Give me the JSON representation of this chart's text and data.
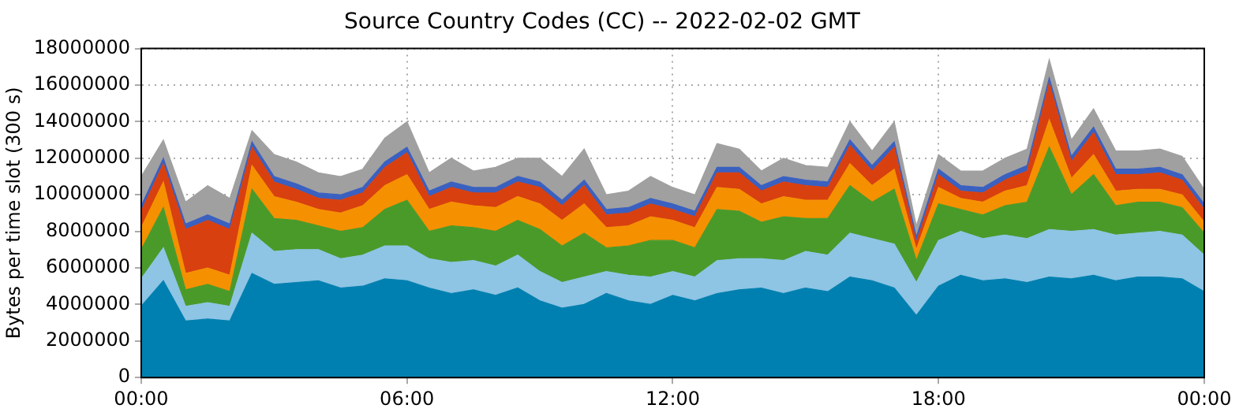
{
  "chart_data": {
    "type": "area",
    "stacked": true,
    "title": "Source Country Codes (CC) -- 2022-02-02 GMT",
    "ylabel": "Bytes per time slot (300 s)",
    "x": [
      0,
      0.5,
      1,
      1.5,
      2,
      2.5,
      3,
      3.5,
      4,
      4.5,
      5,
      5.5,
      6,
      6.5,
      7,
      7.5,
      8,
      8.5,
      9,
      9.5,
      10,
      10.5,
      11,
      11.5,
      12,
      12.5,
      13,
      13.5,
      14,
      14.5,
      15,
      15.5,
      16,
      16.5,
      17,
      17.5,
      18,
      18.5,
      19,
      19.5,
      20,
      20.5,
      21,
      21.5,
      22,
      22.5,
      23,
      23.5,
      24
    ],
    "xlim": [
      0,
      24
    ],
    "xticks": [
      {
        "value": 0,
        "label": "00:00"
      },
      {
        "value": 6,
        "label": "06:00"
      },
      {
        "value": 12,
        "label": "12:00"
      },
      {
        "value": 18,
        "label": "18:00"
      },
      {
        "value": 24,
        "label": "00:00"
      }
    ],
    "ylim": [
      0,
      18000000
    ],
    "yticks": [
      0,
      2000000,
      4000000,
      6000000,
      8000000,
      10000000,
      12000000,
      14000000,
      16000000,
      18000000
    ],
    "grid": true,
    "legend": false,
    "series": [
      {
        "color": "#0080b0",
        "values": [
          3900000.0,
          5300000.0,
          3100000.0,
          3200000.0,
          3100000.0,
          5700000.0,
          5100000.0,
          5200000.0,
          5300000.0,
          4900000.0,
          5000000.0,
          5400000.0,
          5300000.0,
          4900000.0,
          4600000.0,
          4800000.0,
          4500000.0,
          4900000.0,
          4200000.0,
          3800000.0,
          4000000.0,
          4600000.0,
          4200000.0,
          4000000.0,
          4500000.0,
          4200000.0,
          4600000.0,
          4800000.0,
          4900000.0,
          4600000.0,
          4900000.0,
          4700000.0,
          5500000.0,
          5300000.0,
          4900000.0,
          3400000.0,
          5000000.0,
          5600000.0,
          5300000.0,
          5400000.0,
          5200000.0,
          5500000.0,
          5400000.0,
          5600000.0,
          5300000.0,
          5500000.0,
          5500000.0,
          5400000.0,
          4700000.0
        ]
      },
      {
        "color": "#8ec4e4",
        "values": [
          1500000.0,
          1800000.0,
          800000.0,
          900000.0,
          800000.0,
          2200000.0,
          1800000.0,
          1800000.0,
          1700000.0,
          1600000.0,
          1700000.0,
          1800000.0,
          1900000.0,
          1600000.0,
          1700000.0,
          1600000.0,
          1600000.0,
          1800000.0,
          1600000.0,
          1400000.0,
          1500000.0,
          1200000.0,
          1400000.0,
          1500000.0,
          1300000.0,
          1300000.0,
          1800000.0,
          1700000.0,
          1600000.0,
          1800000.0,
          2000000.0,
          2000000.0,
          2400000.0,
          2300000.0,
          2400000.0,
          1800000.0,
          2500000.0,
          2400000.0,
          2300000.0,
          2400000.0,
          2400000.0,
          2600000.0,
          2600000.0,
          2500000.0,
          2500000.0,
          2400000.0,
          2500000.0,
          2400000.0,
          2000000.0
        ]
      },
      {
        "color": "#4a9a2a",
        "values": [
          1600000.0,
          2200000.0,
          900000.0,
          1000000.0,
          800000.0,
          2400000.0,
          1800000.0,
          1600000.0,
          1300000.0,
          1500000.0,
          1500000.0,
          2000000.0,
          2500000.0,
          1500000.0,
          2000000.0,
          1800000.0,
          1900000.0,
          1900000.0,
          2300000.0,
          2000000.0,
          2400000.0,
          1300000.0,
          1600000.0,
          2000000.0,
          1700000.0,
          1600000.0,
          2800000.0,
          2600000.0,
          2000000.0,
          2400000.0,
          1800000.0,
          2000000.0,
          2600000.0,
          2000000.0,
          3000000.0,
          1200000.0,
          2000000.0,
          1200000.0,
          1300000.0,
          1600000.0,
          2000000.0,
          4500000.0,
          2000000.0,
          3000000.0,
          1600000.0,
          1700000.0,
          1600000.0,
          1500000.0,
          1200000.0
        ]
      },
      {
        "color": "#f59000",
        "values": [
          1200000.0,
          1400000.0,
          900000.0,
          900000.0,
          900000.0,
          1300000.0,
          1200000.0,
          1000000.0,
          900000.0,
          1000000.0,
          1200000.0,
          1300000.0,
          1400000.0,
          1200000.0,
          1300000.0,
          1200000.0,
          1300000.0,
          1300000.0,
          1400000.0,
          1400000.0,
          1600000.0,
          1100000.0,
          1100000.0,
          1300000.0,
          1100000.0,
          1100000.0,
          1200000.0,
          1200000.0,
          1000000.0,
          1100000.0,
          1000000.0,
          1000000.0,
          1200000.0,
          900000.0,
          1100000.0,
          600000.0,
          900000.0,
          600000.0,
          700000.0,
          800000.0,
          900000.0,
          1500000.0,
          900000.0,
          1100000.0,
          800000.0,
          700000.0,
          700000.0,
          700000.0,
          600000.0
        ]
      },
      {
        "color": "#d84010",
        "values": [
          900000.0,
          1000000.0,
          2400000.0,
          2600000.0,
          2500000.0,
          1000000.0,
          800000.0,
          700000.0,
          600000.0,
          700000.0,
          700000.0,
          1000000.0,
          1200000.0,
          700000.0,
          800000.0,
          700000.0,
          800000.0,
          800000.0,
          900000.0,
          800000.0,
          1000000.0,
          700000.0,
          700000.0,
          700000.0,
          600000.0,
          600000.0,
          800000.0,
          900000.0,
          700000.0,
          800000.0,
          800000.0,
          700000.0,
          1000000.0,
          800000.0,
          1200000.0,
          400000.0,
          700000.0,
          400000.0,
          500000.0,
          600000.0,
          800000.0,
          2000000.0,
          900000.0,
          1200000.0,
          900000.0,
          800000.0,
          900000.0,
          800000.0,
          700000.0
        ]
      },
      {
        "color": "#3a60c0",
        "values": [
          300000.0,
          300000.0,
          300000.0,
          300000.0,
          300000.0,
          300000.0,
          300000.0,
          300000.0,
          300000.0,
          300000.0,
          300000.0,
          300000.0,
          300000.0,
          300000.0,
          300000.0,
          300000.0,
          300000.0,
          300000.0,
          300000.0,
          300000.0,
          300000.0,
          300000.0,
          300000.0,
          300000.0,
          300000.0,
          300000.0,
          300000.0,
          300000.0,
          300000.0,
          300000.0,
          300000.0,
          300000.0,
          300000.0,
          300000.0,
          300000.0,
          300000.0,
          300000.0,
          300000.0,
          300000.0,
          300000.0,
          300000.0,
          300000.0,
          300000.0,
          300000.0,
          300000.0,
          300000.0,
          300000.0,
          300000.0,
          300000.0
        ]
      },
      {
        "color": "#a0a0a0",
        "values": [
          1600000.0,
          1000000.0,
          1200000.0,
          1600000.0,
          1400000.0,
          600000.0,
          1200000.0,
          1200000.0,
          1100000.0,
          1000000.0,
          1000000.0,
          1300000.0,
          1400000.0,
          1000000.0,
          1300000.0,
          900000.0,
          1100000.0,
          1000000.0,
          1300000.0,
          1300000.0,
          1700000.0,
          800000.0,
          900000.0,
          1200000.0,
          900000.0,
          900000.0,
          1300000.0,
          1000000.0,
          800000.0,
          1000000.0,
          800000.0,
          800000.0,
          1000000.0,
          800000.0,
          1100000.0,
          600000.0,
          800000.0,
          800000.0,
          900000.0,
          900000.0,
          900000.0,
          1000000.0,
          900000.0,
          1000000.0,
          1000000.0,
          1000000.0,
          1000000.0,
          1000000.0,
          800000.0
        ]
      }
    ]
  }
}
